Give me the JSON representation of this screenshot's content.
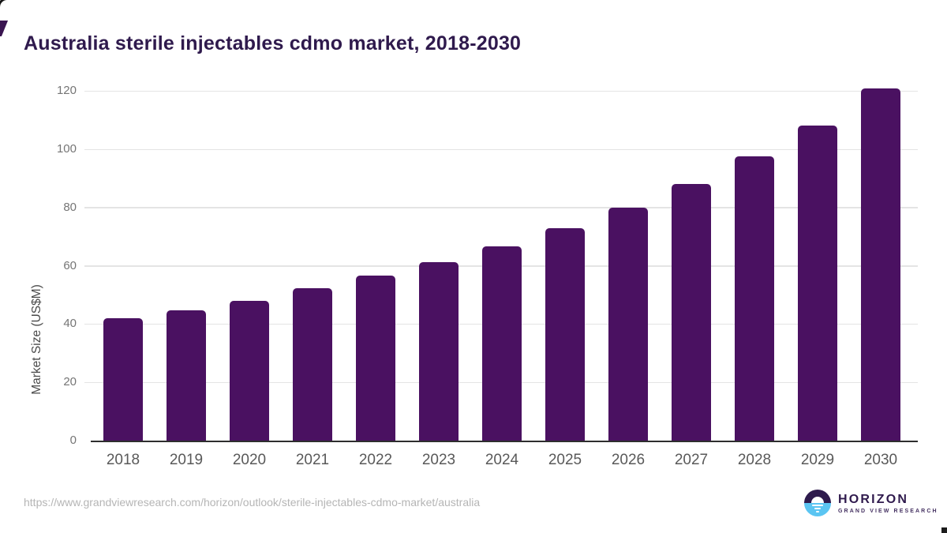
{
  "title": "Australia sterile injectables cdmo market, 2018-2030",
  "chart_data": {
    "type": "bar",
    "title": "Australia sterile injectables cdmo market, 2018-2030",
    "categories": [
      "2018",
      "2019",
      "2020",
      "2021",
      "2022",
      "2023",
      "2024",
      "2025",
      "2026",
      "2027",
      "2028",
      "2029",
      "2030"
    ],
    "values": [
      41.9,
      44.6,
      48.0,
      52.2,
      56.6,
      61.3,
      66.8,
      73.0,
      80.0,
      88.0,
      97.6,
      108.1,
      120.8
    ],
    "xlabel": "",
    "ylabel": "Market Size (US$M)",
    "yticks": [
      0,
      20,
      40,
      60,
      80,
      100,
      120
    ],
    "ylim": [
      0,
      126
    ],
    "grid": true,
    "legend": "none",
    "bar_color": "#4a1161"
  },
  "colors": {
    "bar": "#4a1161",
    "title_text": "#2f1a4d",
    "gridline": "#e4e4e4",
    "axis_line": "#2e2e2e",
    "tick_text": "#757575",
    "logo_dark": "#2e1b4d",
    "logo_blue": "#5bc5f2"
  },
  "footer": {
    "source_url": "https://www.grandviewresearch.com/horizon/outlook/sterile-injectables-cdmo-market/australia",
    "logo": {
      "name": "HORIZON",
      "subtitle": "GRAND VIEW RESEARCH"
    }
  }
}
